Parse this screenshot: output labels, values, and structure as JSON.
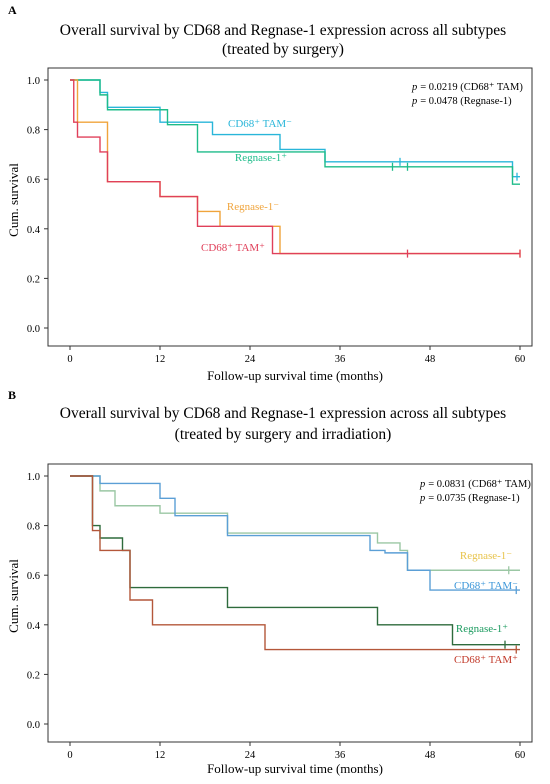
{
  "chart_data": [
    {
      "panel": "A",
      "type": "line",
      "title_line1": "Overall survival by CD68 and Regnase-1 expression across all subtypes",
      "title_line2": "(treated by surgery)",
      "xlabel": "Follow-up survival time (months)",
      "ylabel": "Cum. survival",
      "xlim": [
        0,
        60
      ],
      "ylim": [
        0,
        1.0
      ],
      "xticks": [
        0,
        12,
        24,
        36,
        48,
        60
      ],
      "yticks": [
        "0.0",
        "0.2",
        "0.4",
        "0.6",
        "0.8",
        "1.0"
      ],
      "ytick_values": [
        0,
        0.2,
        0.4,
        0.6,
        0.8,
        1.0
      ],
      "pvalues": [
        "= 0.0219 (CD68⁺ TAM)",
        "= 0.0478 (Regnase-1)"
      ],
      "p_symbol": "p",
      "series": [
        {
          "name": "CD68⁺ TAM⁻",
          "color": "#29b6d9",
          "x": [
            0,
            4,
            5,
            12,
            19,
            28,
            34,
            59,
            60
          ],
          "y": [
            1.0,
            0.95,
            0.89,
            0.83,
            0.78,
            0.72,
            0.67,
            0.61,
            0.61
          ],
          "censor_x": [
            44,
            59.6
          ]
        },
        {
          "name": "Regnase-1⁺",
          "color": "#1ebc8a",
          "x": [
            0,
            4,
            5,
            13,
            17,
            27,
            34,
            59,
            60
          ],
          "y": [
            1.0,
            0.94,
            0.88,
            0.82,
            0.71,
            0.71,
            0.65,
            0.58,
            0.58
          ],
          "censor_x": [
            43,
            45
          ]
        },
        {
          "name": "Regnase-1⁻",
          "color": "#f0a43b",
          "x": [
            0,
            1,
            5,
            12,
            17,
            20,
            28,
            60
          ],
          "y": [
            1.0,
            0.83,
            0.59,
            0.53,
            0.47,
            0.41,
            0.3,
            0.3
          ],
          "censor_x": [
            60
          ]
        },
        {
          "name": "CD68⁺ TAM⁺",
          "color": "#e0405a",
          "x": [
            0,
            0.5,
            1,
            4,
            5,
            12,
            17,
            27,
            60
          ],
          "y": [
            1.0,
            0.83,
            0.77,
            0.71,
            0.59,
            0.53,
            0.41,
            0.3,
            0.3
          ],
          "censor_x": [
            45,
            60
          ]
        }
      ],
      "labels": [
        {
          "text": "CD68⁺ TAM⁻",
          "color": "#29b6d9"
        },
        {
          "text": "Regnase-1⁺",
          "color": "#1ebc8a"
        },
        {
          "text": "Regnase-1⁻",
          "color": "#f0a43b"
        },
        {
          "text": "CD68⁺ TAM⁺",
          "color": "#e0405a"
        }
      ]
    },
    {
      "panel": "B",
      "type": "line",
      "title_line1": "Overall survival by CD68 and Regnase-1 expression across all subtypes",
      "title_line2": "(treated by surgery and irradiation)",
      "xlabel": "Follow-up survival time (months)",
      "ylabel": "Cum. survival",
      "xlim": [
        0,
        60
      ],
      "ylim": [
        0,
        1.0
      ],
      "xticks": [
        0,
        12,
        24,
        36,
        48,
        60
      ],
      "yticks": [
        "0.0",
        "0.2",
        "0.4",
        "0.6",
        "0.8",
        "1.0"
      ],
      "ytick_values": [
        0,
        0.2,
        0.4,
        0.6,
        0.8,
        1.0
      ],
      "pvalues": [
        "= 0.0831 (CD68⁺ TAM)",
        "= 0.0735 (Regnase-1)"
      ],
      "p_symbol": "p",
      "series": [
        {
          "name": "Regnase-1⁻",
          "color": "#9bc7a4",
          "x": [
            0,
            4,
            6,
            12,
            21,
            40,
            41,
            44,
            45,
            60
          ],
          "y": [
            1.0,
            0.94,
            0.88,
            0.85,
            0.77,
            0.77,
            0.73,
            0.7,
            0.62,
            0.62
          ],
          "censor_x": [
            58.5
          ]
        },
        {
          "name": "CD68⁺ TAM⁻",
          "color": "#5b9fd6",
          "x": [
            0,
            4,
            12,
            14,
            21,
            40,
            42,
            45,
            48,
            60
          ],
          "y": [
            1.0,
            0.97,
            0.91,
            0.84,
            0.76,
            0.7,
            0.69,
            0.62,
            0.54,
            0.54
          ],
          "censor_x": [
            59.5
          ]
        },
        {
          "name": "Regnase-1⁺",
          "color": "#2e6b3c",
          "x": [
            0,
            3,
            4,
            7,
            8,
            16,
            21,
            41,
            51,
            60
          ],
          "y": [
            1.0,
            0.8,
            0.75,
            0.7,
            0.55,
            0.55,
            0.47,
            0.4,
            0.32,
            0.32
          ],
          "censor_x": [
            58
          ]
        },
        {
          "name": "CD68⁺ TAM⁺",
          "color": "#b4573a",
          "x": [
            0,
            3,
            4,
            8,
            11,
            26,
            60
          ],
          "y": [
            1.0,
            0.78,
            0.7,
            0.5,
            0.4,
            0.3,
            0.3
          ],
          "censor_x": [
            59.5
          ]
        }
      ],
      "labels": [
        {
          "text": "Regnase-1⁻",
          "color": "#e8c34a"
        },
        {
          "text": "CD68⁺ TAM⁻",
          "color": "#3d97d9"
        },
        {
          "text": "Regnase-1⁺",
          "color": "#1a9a5e"
        },
        {
          "text": "CD68⁺ TAM⁺",
          "color": "#c23a2a"
        }
      ]
    }
  ]
}
